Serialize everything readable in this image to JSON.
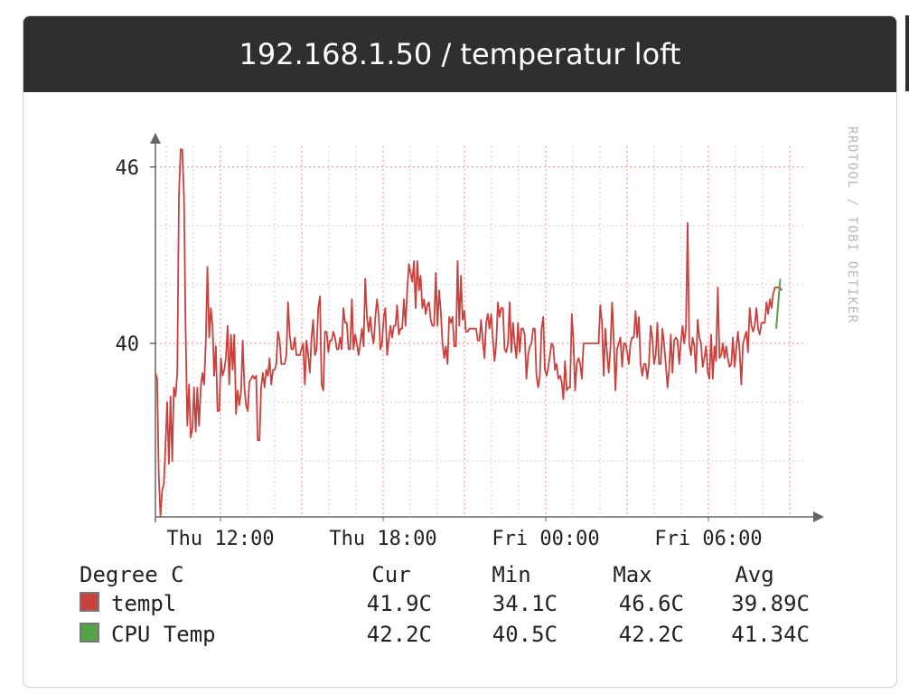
{
  "panel": {
    "title": "192.168.1.50 / temperatur loft"
  },
  "chart_data": {
    "type": "line",
    "watermark": "RRDTOOL / TOBI OETIKER",
    "colors": {
      "background": "#ffffff",
      "grid_minor": "#cccccc",
      "grid_major": "#f08080",
      "axis": "#666666"
    },
    "x_axis": {
      "ticks": [
        {
          "label": "Thu 12:00",
          "hours": 2
        },
        {
          "label": "Thu 18:00",
          "hours": 8
        },
        {
          "label": "Fri 00:00",
          "hours": 14
        },
        {
          "label": "Fri 06:00",
          "hours": 20
        }
      ],
      "range_hours": [
        -0.4,
        23.6
      ]
    },
    "y_axis": {
      "ticks": [
        40,
        46
      ],
      "ylim": [
        34.1,
        46.7
      ]
    },
    "series": [
      {
        "name": "templ",
        "color": "#c8413c",
        "values": [
          39,
          38.8,
          35.5,
          34.1,
          35,
          35.2,
          36.5,
          38,
          35.9,
          38.2,
          36,
          38.5,
          38.2,
          39,
          45,
          46.6,
          46.6,
          45,
          40.5,
          37.2,
          38.6,
          36.8,
          37.1,
          38.5,
          37,
          38.5,
          37.2,
          38.5,
          39,
          38.6,
          40,
          42.6,
          40.2,
          41.2,
          40.6,
          38.9,
          39.9,
          37.7,
          37.7,
          39.5,
          38.9,
          39.1,
          39.5,
          40.6,
          38.6,
          40.3,
          39.1,
          40.3,
          37.6,
          38.4,
          37.9,
          38.4,
          40.1,
          38.5,
          37.9,
          37.7,
          38.7,
          38.8,
          38.9,
          38.8,
          38.9,
          36.7,
          36.7,
          38.5,
          39,
          38.5,
          39.1,
          38.9,
          39.5,
          38.6,
          39.1,
          39.1,
          39.3,
          40.4,
          40.1,
          39.3,
          39.3,
          39.3,
          39.6,
          41.4,
          40.3,
          39.8,
          39.8,
          40.2,
          39.6,
          39.6,
          39.6,
          39.8,
          40,
          38.6,
          40.1,
          39.6,
          39,
          40.2,
          40.8,
          39.6,
          39.8,
          41.2,
          41.6,
          38.6,
          38.4,
          40.4,
          40.4,
          39.7,
          40.1,
          40.1,
          40.4,
          40.2,
          39.8,
          39.8,
          40.2,
          39.8,
          41.2,
          40.7,
          40.7,
          39.8,
          39.8,
          41.5,
          39.8,
          40.3,
          40,
          39.6,
          40,
          40.5,
          39.9,
          42.2,
          40.9,
          40.4,
          40.9,
          40.3,
          40,
          40.9,
          41.5,
          41,
          39.8,
          40,
          40.9,
          41.2,
          39.6,
          40.1,
          40.6,
          40.2,
          40.6,
          40.6,
          41.3,
          40.3,
          40.5,
          40.5,
          41.5,
          40.6,
          41.8,
          42.7,
          42.4,
          42.1,
          42.8,
          41.2,
          42.8,
          41.8,
          42.3,
          41.2,
          41.5,
          41,
          41.3,
          41.4,
          40.8,
          40.6,
          40.6,
          42.4,
          40.6,
          41.8,
          41.1,
          40,
          39.5,
          39.9,
          39.3,
          40.9,
          40.7,
          40.9,
          39.9,
          39.9,
          42.8,
          40.6,
          42.3,
          40.8,
          41.1,
          40.4,
          40.4,
          40.5,
          40.5,
          40.5,
          40.5,
          40.5,
          40.1,
          40.1,
          40.8,
          40.1,
          39.5,
          40.7,
          41,
          40.5,
          41,
          40.2,
          39.4,
          40,
          41.4,
          40.9,
          41.2,
          41.2,
          39.8,
          39.7,
          40,
          41.4,
          39.7,
          40.7,
          40,
          39.5,
          40.7,
          39.7,
          40.5,
          40.5,
          40.3,
          38.8,
          39.6,
          39.9,
          40,
          40.5,
          40.5,
          38.9,
          38.5,
          38.9,
          40.5,
          40.9,
          39.1,
          38.9,
          39.2,
          39.6,
          40,
          39.9,
          39.1,
          39.3,
          38.8,
          38.9,
          38.7,
          38.1,
          39.4,
          38.4,
          38.5,
          38.5,
          41,
          40.1,
          38.4,
          39.3,
          39.5,
          39.3,
          38.8,
          40,
          40,
          40,
          40,
          40,
          40,
          40,
          40,
          40,
          40,
          41.3,
          40.7,
          38.9,
          40.5,
          39.7,
          39,
          39.8,
          41.4,
          40.2,
          38.4,
          39.8,
          40,
          40.2,
          39.2,
          40,
          40,
          39.7,
          39.3,
          40,
          40.2,
          40.2,
          41.1,
          40.2,
          40.9,
          39.3,
          38.9,
          39.3,
          39.3,
          38.8,
          39.3,
          40.6,
          40.2,
          39.3,
          39.6,
          40.7,
          39.3,
          39.3,
          40.5,
          40,
          39.3,
          38.5,
          39.1,
          40.3,
          39,
          40.1,
          40.2,
          40.1,
          39.3,
          40,
          40.6,
          40,
          40.5,
          44.1,
          40,
          39.6,
          40.2,
          39.9,
          39,
          40.8,
          40.2,
          40,
          39.2,
          39.5,
          39.9,
          39,
          38.8,
          40.3,
          38.8,
          39.9,
          39.4,
          41.9,
          39.5,
          39.6,
          40,
          39.5,
          39.9,
          39.5,
          39.2,
          39.3,
          40.2,
          39.2,
          39.8,
          40.4,
          39.7,
          38.6,
          40,
          40.2,
          40.4,
          39.7,
          41.2,
          40.6,
          40.4,
          40.6,
          41.2,
          40.5,
          40.3,
          40.7,
          40.7,
          40.7,
          41.4,
          41,
          41.5,
          41.2,
          41.7,
          41.9,
          41.9,
          41.9,
          41.9,
          41.8
        ]
      },
      {
        "name": "CPU Temp",
        "color": "#55a248",
        "values": [
          40.5,
          42.2
        ]
      }
    ]
  },
  "legend": {
    "unit_label": "Degree C",
    "headers": [
      "Cur",
      "Min",
      "Max",
      "Avg"
    ],
    "rows": [
      {
        "name": "templ",
        "cur": "41.9C",
        "min": "34.1C",
        "max": "46.6C",
        "avg": "39.89C",
        "color": "#c8413c"
      },
      {
        "name": "CPU Temp",
        "cur": "42.2C",
        "min": "40.5C",
        "max": "42.2C",
        "avg": "41.34C",
        "color": "#55a248"
      }
    ]
  }
}
